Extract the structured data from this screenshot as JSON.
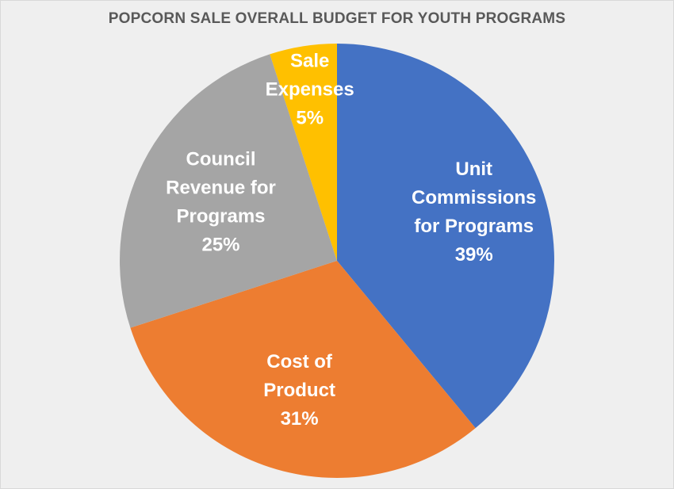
{
  "chart_data": {
    "type": "pie",
    "title": "POPCORN SALE OVERALL BUDGET FOR YOUTH PROGRAMS",
    "start_angle_deg": 0,
    "direction": "clockwise",
    "slices": [
      {
        "name": "Unit Commissions for Programs",
        "label_lines": [
          "Unit",
          "Commissions",
          "for Programs"
        ],
        "value": 39,
        "percent_label": "39%",
        "color": "#4472C4"
      },
      {
        "name": "Cost of Product",
        "label_lines": [
          "Cost of",
          "Product"
        ],
        "value": 31,
        "percent_label": "31%",
        "color": "#ED7D31"
      },
      {
        "name": "Council Revenue for Programs",
        "label_lines": [
          "Council",
          "Revenue for",
          "Programs"
        ],
        "value": 25,
        "percent_label": "25%",
        "color": "#A5A5A5"
      },
      {
        "name": "Sale Expenses",
        "label_lines": [
          "Sale",
          "Expenses"
        ],
        "value": 5,
        "percent_label": "5%",
        "color": "#FFC000"
      }
    ],
    "legend": "none"
  }
}
